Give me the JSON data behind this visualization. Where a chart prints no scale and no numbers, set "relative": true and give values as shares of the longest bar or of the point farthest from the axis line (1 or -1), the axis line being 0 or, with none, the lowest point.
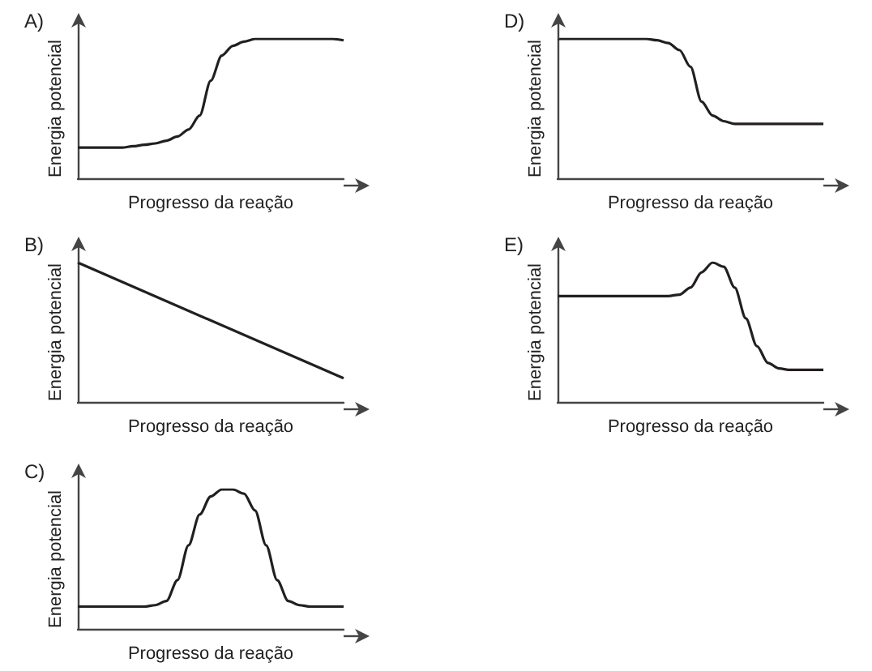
{
  "chart_data": [
    {
      "type": "line",
      "title": "A)",
      "xlabel": "Progresso da reação",
      "ylabel": "Energia potencial",
      "relative": true,
      "tick_labels": false,
      "color": "#231f20",
      "categories": [
        null,
        null,
        null,
        null,
        null,
        null,
        null,
        null,
        null,
        null,
        null,
        null,
        null,
        null,
        null,
        null,
        null,
        null,
        null,
        null,
        null,
        null,
        null,
        null,
        null
      ],
      "values": [
        0.22,
        0.22,
        0.22,
        0.22,
        0.22,
        0.23,
        0.24,
        0.25,
        0.27,
        0.3,
        0.35,
        0.45,
        0.7,
        0.88,
        0.95,
        0.98,
        1,
        1,
        1,
        1,
        1,
        1,
        1,
        1,
        0.99
      ]
    },
    {
      "type": "line",
      "title": "B)",
      "xlabel": "Progresso da reação",
      "ylabel": "Energia potencial",
      "relative": true,
      "tick_labels": false,
      "color": "#231f20",
      "categories": [
        null,
        null
      ],
      "values": [
        1,
        0.17
      ]
    },
    {
      "type": "line",
      "title": "C)",
      "xlabel": "Progresso da reação",
      "ylabel": "Energia potencial",
      "relative": true,
      "tick_labels": false,
      "color": "#231f20",
      "categories": [
        null,
        null,
        null,
        null,
        null,
        null,
        null,
        null,
        null,
        null,
        null,
        null,
        null,
        null,
        null,
        null,
        null,
        null,
        null,
        null,
        null,
        null,
        null,
        null,
        null
      ],
      "values": [
        0.16,
        0.16,
        0.16,
        0.16,
        0.16,
        0.16,
        0.16,
        0.17,
        0.2,
        0.35,
        0.6,
        0.82,
        0.95,
        1,
        1,
        0.97,
        0.85,
        0.6,
        0.35,
        0.2,
        0.17,
        0.16,
        0.16,
        0.16,
        0.16
      ]
    },
    {
      "type": "line",
      "title": "D)",
      "xlabel": "Progresso da reação",
      "ylabel": "Energia potencial",
      "relative": true,
      "tick_labels": false,
      "color": "#231f20",
      "categories": [
        null,
        null,
        null,
        null,
        null,
        null,
        null,
        null,
        null,
        null,
        null,
        null,
        null,
        null,
        null,
        null,
        null,
        null,
        null,
        null,
        null,
        null,
        null,
        null,
        null
      ],
      "values": [
        1,
        1,
        1,
        1,
        1,
        1,
        1,
        1,
        1,
        0.99,
        0.97,
        0.92,
        0.8,
        0.55,
        0.45,
        0.41,
        0.39,
        0.39,
        0.39,
        0.39,
        0.39,
        0.39,
        0.39,
        0.39,
        0.39
      ]
    },
    {
      "type": "line",
      "title": "E)",
      "xlabel": "Progresso da reação",
      "ylabel": "Energia potencial",
      "relative": true,
      "tick_labels": false,
      "color": "#231f20",
      "categories": [
        null,
        null,
        null,
        null,
        null,
        null,
        null,
        null,
        null,
        null,
        null,
        null,
        null,
        null,
        null,
        null,
        null,
        null,
        null,
        null,
        null,
        null,
        null,
        null,
        null
      ],
      "values": [
        0.76,
        0.76,
        0.76,
        0.76,
        0.76,
        0.76,
        0.76,
        0.76,
        0.76,
        0.76,
        0.76,
        0.77,
        0.82,
        0.93,
        1,
        0.97,
        0.82,
        0.6,
        0.4,
        0.28,
        0.24,
        0.23,
        0.23,
        0.23,
        0.23
      ]
    }
  ]
}
